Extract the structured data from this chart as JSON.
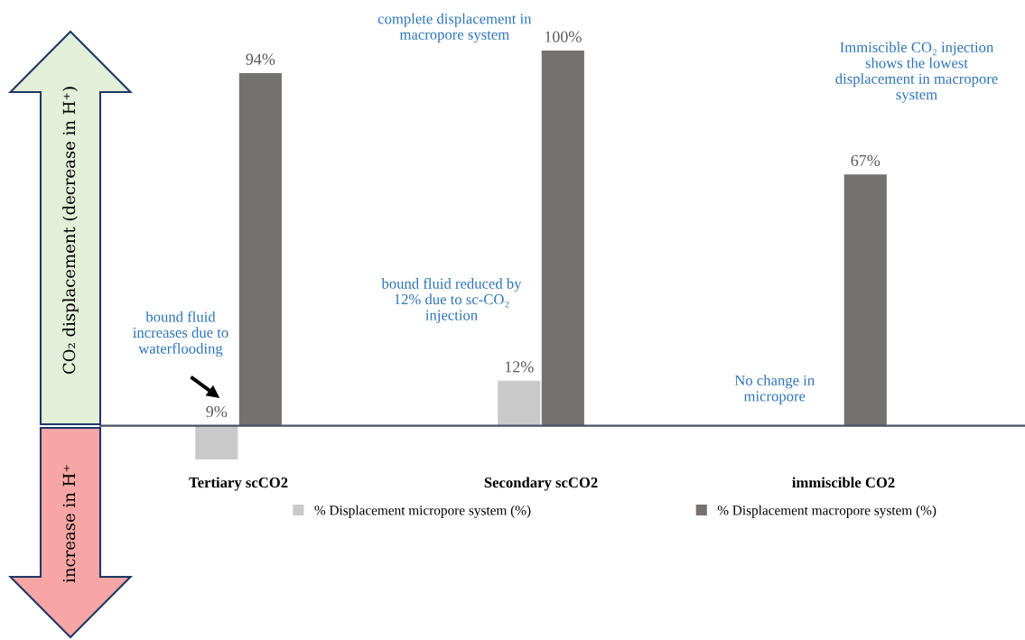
{
  "chart_data": {
    "type": "bar",
    "ylabel": "CO₂ displacement (decrease in H⁺)",
    "categories": [
      "Tertiary scCO2",
      "Secondary scCO2",
      "immiscible CO2"
    ],
    "series": [
      {
        "name": "% Displacement micropore system (%)",
        "color": "#c9c9c9",
        "values": [
          -9,
          12,
          0
        ],
        "value_labels": [
          null,
          "12%",
          null
        ]
      },
      {
        "name": "% Displacement macropore system (%)",
        "color": "#757171",
        "values": [
          94,
          100,
          67
        ],
        "value_labels": [
          "94%",
          "100%",
          "67%"
        ]
      }
    ],
    "legend": "bottom",
    "annotations": [
      {
        "text": "complete displacement in\nmacropore system",
        "x": "Secondary scCO2",
        "y": 100
      },
      {
        "text": "No change in\nmicropore",
        "x": "immiscible CO2",
        "y": 0
      },
      {
        "text": "9%",
        "x": "Tertiary scCO2",
        "y": 0
      },
      "bound fluid\nincreases due to\nwaterflooding",
      "bound fluid reduced by\n12% due to sc-CO₂\ninjection",
      "Immiscible CO₂ injection\nshows the lowest\ndisplacement in macropore\nsystem",
      "increase in H⁺"
    ]
  }
}
